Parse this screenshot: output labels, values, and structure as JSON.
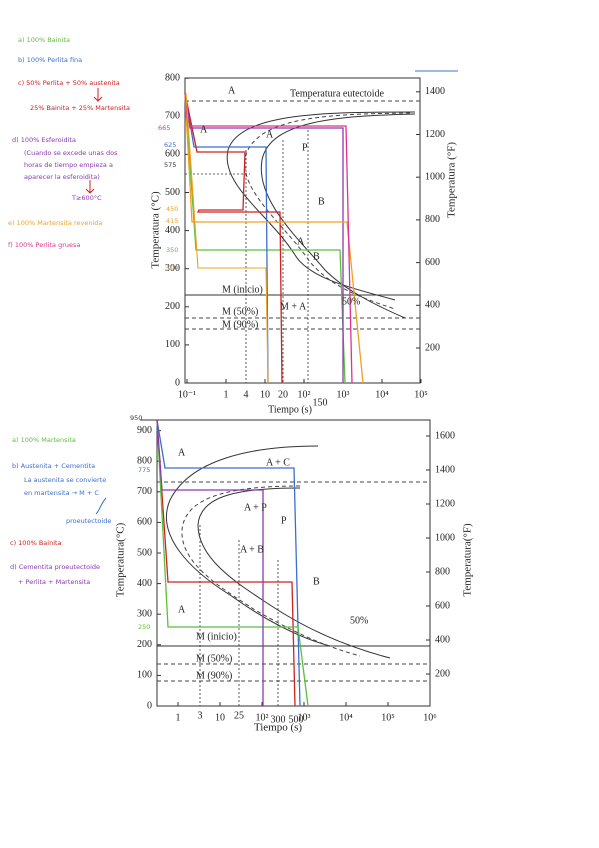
{
  "notes_top": [
    "a) 100% Bainita",
    "b) 100% Perlita fina",
    "c) 50% Perlita + 50% austenita",
    "25% Bainita + 25% Martensita",
    "d) 100% Esferoidita",
    "(Cuando se excede unas dos",
    "horas de tiempo empieza a",
    "aparecer la esferoidita)",
    "T≥600°C",
    "e) 100% Martensita revenida",
    "f) 100% Perlita gruesa"
  ],
  "diagram1": {
    "yticks": [
      "0",
      "100",
      "200",
      "300",
      "400",
      "500",
      "600",
      "700",
      "800"
    ],
    "fticks": [
      "200",
      "400",
      "600",
      "800",
      "1000",
      "1200",
      "1400"
    ],
    "xticks": [
      "10⁻¹",
      "1",
      "10",
      "10²",
      "10³",
      "10⁴",
      "10⁵"
    ],
    "marked_temps": [
      "665",
      "625",
      "575",
      "450",
      "415",
      "350",
      "300"
    ],
    "marked_times": [
      "4",
      "20",
      "150"
    ],
    "labels": [
      "Temperatura eutectoide",
      "A",
      "A",
      "A",
      "P",
      "B",
      "A",
      "B",
      "M (inicio)",
      "M (50%)",
      "M (90%)",
      "M + A",
      "50%"
    ],
    "y_label": "Temperatura (°C)",
    "f_label": "Temperatura (°F)",
    "x_label": "Tiempo (s)"
  },
  "notes_bottom": [
    "a) 100% Martensita",
    "b) Austenita + Cementita",
    "La austenita se convierte",
    "en martensita → M + C",
    "proeutectoide",
    "c) 100% Bainita",
    "d) Cementita proeutectoide",
    "+ Perlita + Martensita"
  ],
  "diagram2": {
    "yticks": [
      "0",
      "100",
      "200",
      "300",
      "400",
      "500",
      "600",
      "700",
      "800",
      "900"
    ],
    "fticks": [
      "200",
      "400",
      "600",
      "800",
      "1000",
      "1200",
      "1400",
      "1600"
    ],
    "xticks": [
      "1",
      "10",
      "10²",
      "10³",
      "10⁴",
      "10⁵",
      "10⁶"
    ],
    "marked_temps": [
      "950",
      "775",
      "250"
    ],
    "marked_times": [
      "3",
      "25",
      "300",
      "500"
    ],
    "labels": [
      "A",
      "A + C",
      "A + P",
      "P",
      "A + B",
      "B",
      "A",
      "M (inicio)",
      "M (50%)",
      "M (90%)",
      "50%"
    ],
    "y_label": "Temperatura(°C)",
    "f_label": "Temperatura(°F)",
    "x_label": "Tiempo (s)"
  }
}
